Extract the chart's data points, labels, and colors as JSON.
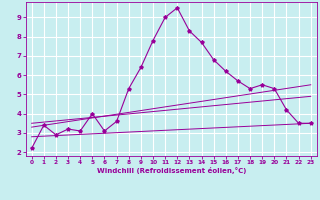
{
  "xlabel": "Windchill (Refroidissement éolien,°C)",
  "background_color": "#c8eef0",
  "grid_color": "#ffffff",
  "line_color": "#990099",
  "xlim": [
    -0.5,
    23.5
  ],
  "ylim": [
    1.8,
    9.8
  ],
  "yticks": [
    2,
    3,
    4,
    5,
    6,
    7,
    8,
    9
  ],
  "xticks": [
    0,
    1,
    2,
    3,
    4,
    5,
    6,
    7,
    8,
    9,
    10,
    11,
    12,
    13,
    14,
    15,
    16,
    17,
    18,
    19,
    20,
    21,
    22,
    23
  ],
  "line1_x": [
    0,
    1,
    2,
    3,
    4,
    5,
    6,
    7,
    8,
    9,
    10,
    11,
    12,
    13,
    14,
    15,
    16,
    17,
    18,
    19,
    20,
    21,
    22,
    23
  ],
  "line1_y": [
    2.2,
    3.4,
    2.9,
    3.2,
    3.1,
    4.0,
    3.1,
    3.6,
    5.3,
    6.4,
    7.8,
    9.0,
    9.5,
    8.3,
    7.7,
    6.8,
    6.2,
    5.7,
    5.3,
    5.5,
    5.3,
    4.2,
    3.5,
    3.5
  ],
  "line2_x": [
    0,
    23
  ],
  "line2_y": [
    2.8,
    3.5
  ],
  "line3_x": [
    0,
    23
  ],
  "line3_y": [
    3.3,
    5.5
  ],
  "line4_x": [
    0,
    23
  ],
  "line4_y": [
    3.5,
    4.9
  ]
}
